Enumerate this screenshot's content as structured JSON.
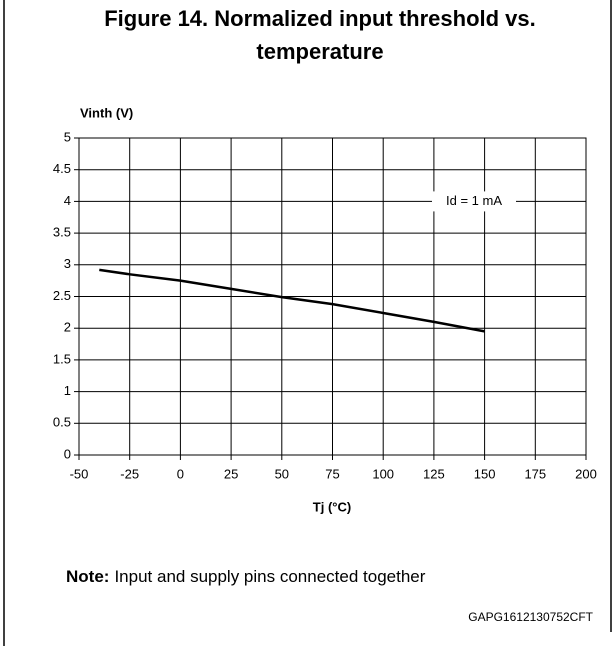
{
  "chart_data": {
    "type": "line",
    "title": "Figure 14. Normalized input threshold vs.",
    "title_line2": "temperature",
    "ylabel": "Vinth (V)",
    "xlabel": "Tj (°C)",
    "annotation": "Id = 1 mA",
    "x": [
      -40,
      -25,
      0,
      25,
      50,
      75,
      100,
      125,
      150
    ],
    "series": [
      {
        "name": "Id = 1 mA",
        "color": "#000000",
        "values": [
          2.92,
          2.85,
          2.75,
          2.62,
          2.49,
          2.38,
          2.24,
          2.1,
          1.95
        ]
      }
    ],
    "xlim": [
      -50,
      200
    ],
    "xticks": [
      -50,
      -25,
      0,
      25,
      50,
      75,
      100,
      125,
      150,
      175,
      200
    ],
    "ylim": [
      0,
      5
    ],
    "yticks": [
      0,
      0.5,
      1,
      1.5,
      2,
      2.5,
      3,
      3.5,
      4,
      4.5,
      5
    ],
    "grid": true
  },
  "note": {
    "label": "Note:",
    "text": "Input and supply pins connected together"
  },
  "code": "GAPG1612130752CFT"
}
